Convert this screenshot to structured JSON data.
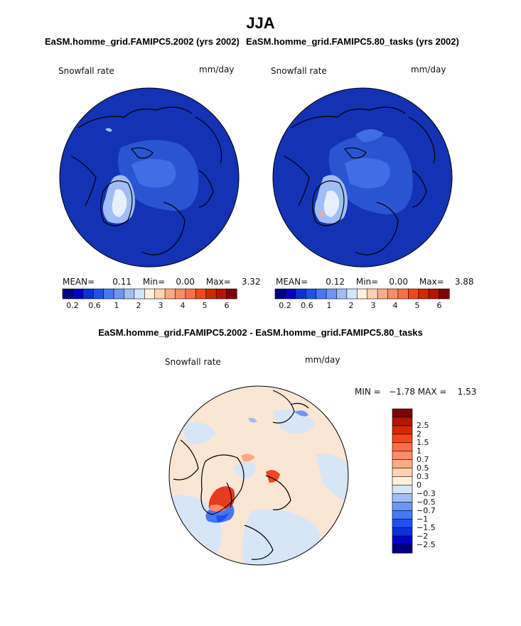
{
  "season": "JJA",
  "panel1": {
    "case_title": "EaSM.homme_grid.FAMIPC5.2002 (yrs 2002)",
    "variable": "Snowfall rate",
    "units": "mm/day",
    "mean_label": "MEAN=",
    "mean": "0.11",
    "min_label": "Min=",
    "min": "0.00",
    "max_label": "Max=",
    "max": "3.32"
  },
  "panel2": {
    "case_title": "EaSM.homme_grid.FAMIPC5.80_tasks (yrs 2002)",
    "variable": "Snowfall rate",
    "units": "mm/day",
    "mean_label": "MEAN=",
    "mean": "0.12",
    "min_label": "Min=",
    "min": "0.00",
    "max_label": "Max=",
    "max": "3.88"
  },
  "panel3": {
    "case_title": "EaSM.homme_grid.FAMIPC5.2002 - EaSM.homme_grid.FAMIPC5.80_tasks",
    "variable": "Snowfall rate",
    "units": "mm/day",
    "range_text": "MIN =   −1.78 MAX =    1.53"
  },
  "colorbar_main": {
    "colors": [
      "#00007f",
      "#0000c8",
      "#0a32dc",
      "#1e50f0",
      "#4678f5",
      "#6e96f5",
      "#a0bef5",
      "#d2e6fa",
      "#fff0dc",
      "#ffd2b4",
      "#ffaa82",
      "#ff8c64",
      "#ff6e46",
      "#f5461e",
      "#d22800",
      "#b41400",
      "#7d0000"
    ],
    "labels": [
      "0.2",
      "0.6",
      "1",
      "2",
      "3",
      "4",
      "5",
      "6"
    ]
  },
  "colorbar_diff": {
    "colors": [
      "#7d0000",
      "#b41400",
      "#d22800",
      "#f5461e",
      "#ff6e46",
      "#ff8c64",
      "#ffaa82",
      "#ffd2b4",
      "#fff0dc",
      "#d2e6fa",
      "#a0bef5",
      "#6e96f5",
      "#4678f5",
      "#1e50f0",
      "#0a32dc",
      "#0000c8",
      "#00007f"
    ],
    "labels": [
      "2.5",
      "2",
      "1.5",
      "1",
      "0.7",
      "0.5",
      "0.3",
      "0",
      "−0.3",
      "−0.5",
      "−0.7",
      "−1",
      "−1.5",
      "−2",
      "−2.5"
    ]
  }
}
